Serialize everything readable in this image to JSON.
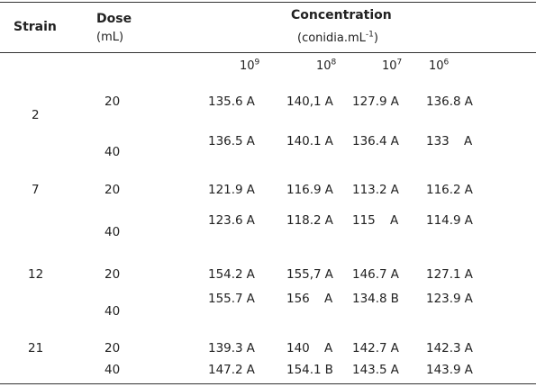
{
  "header": {
    "strain": "Strain",
    "dose": "Dose",
    "dose_unit": "(mL)",
    "concentration": "Concentration",
    "conc_unit_prefix": "(conidia.mL",
    "conc_unit_exp": "-1",
    "conc_unit_suffix": ")",
    "powers": [
      {
        "base": "10",
        "exp": "9"
      },
      {
        "base": "10",
        "exp": "8"
      },
      {
        "base": "10",
        "exp": "7"
      },
      {
        "base": "10",
        "exp": "6"
      }
    ]
  },
  "groups": [
    {
      "strain": "2",
      "rows": [
        {
          "dose": "20",
          "cells": [
            {
              "value": "135.6",
              "letter": "A"
            },
            {
              "value": "140,1",
              "letter": "A"
            },
            {
              "value": "127.9",
              "letter": "A"
            },
            {
              "value": "136.8",
              "letter": "A"
            }
          ]
        },
        {
          "dose": "40",
          "cells": [
            {
              "value": "136.5",
              "letter": "A"
            },
            {
              "value": "140.1",
              "letter": "A"
            },
            {
              "value": "136.4",
              "letter": "A"
            },
            {
              "value": "133",
              "letter": "A"
            }
          ]
        }
      ]
    },
    {
      "strain": "7",
      "rows": [
        {
          "dose": "20",
          "cells": [
            {
              "value": "121.9",
              "letter": "A"
            },
            {
              "value": "116.9",
              "letter": "A"
            },
            {
              "value": "113.2",
              "letter": "A"
            },
            {
              "value": "116.2",
              "letter": "A"
            }
          ]
        },
        {
          "dose": "40",
          "cells": [
            {
              "value": "123.6",
              "letter": "A"
            },
            {
              "value": "118.2",
              "letter": "A"
            },
            {
              "value": "115",
              "letter": "A"
            },
            {
              "value": "114.9",
              "letter": "A"
            }
          ]
        }
      ]
    },
    {
      "strain": "12",
      "rows": [
        {
          "dose": "20",
          "cells": [
            {
              "value": "154.2",
              "letter": "A"
            },
            {
              "value": "155,7",
              "letter": "A"
            },
            {
              "value": "146.7",
              "letter": "A"
            },
            {
              "value": "127.1",
              "letter": "A"
            }
          ]
        },
        {
          "dose": "40",
          "cells": [
            {
              "value": "155.7",
              "letter": "A"
            },
            {
              "value": "156",
              "letter": "A"
            },
            {
              "value": "134.8",
              "letter": "B"
            },
            {
              "value": "123.9",
              "letter": "A"
            }
          ]
        }
      ]
    },
    {
      "strain": "21",
      "rows": [
        {
          "dose": "20",
          "cells": [
            {
              "value": "139.3",
              "letter": "A"
            },
            {
              "value": "140",
              "letter": "A"
            },
            {
              "value": "142.7",
              "letter": "A"
            },
            {
              "value": "142.3",
              "letter": "A"
            }
          ]
        },
        {
          "dose": "40",
          "cells": [
            {
              "value": "147.2",
              "letter": "A"
            },
            {
              "value": "154.1",
              "letter": "B"
            },
            {
              "value": "143.5",
              "letter": "A"
            },
            {
              "value": "143.9",
              "letter": "A"
            }
          ]
        }
      ]
    }
  ]
}
